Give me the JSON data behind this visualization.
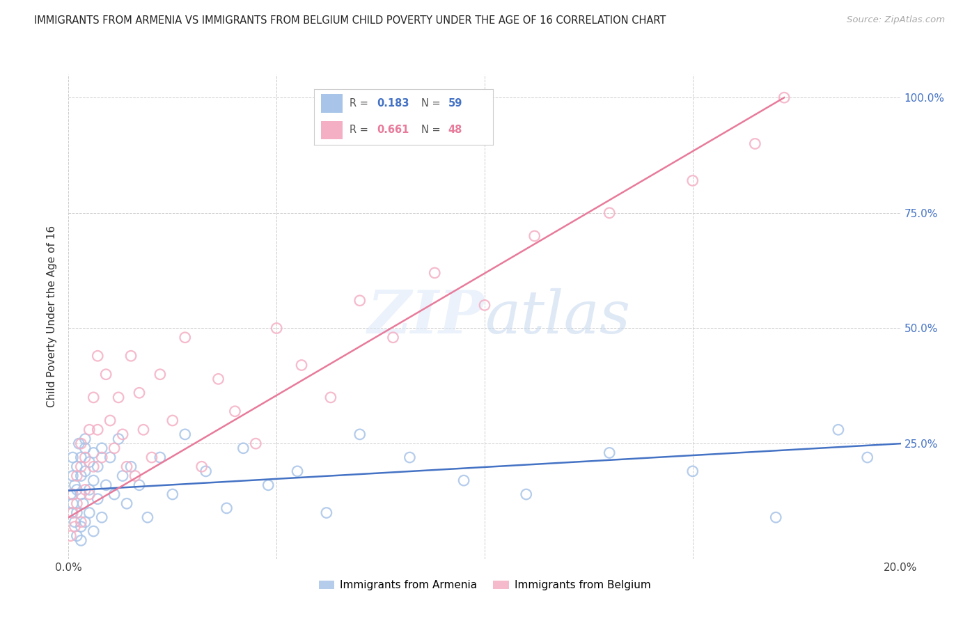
{
  "title": "IMMIGRANTS FROM ARMENIA VS IMMIGRANTS FROM BELGIUM CHILD POVERTY UNDER THE AGE OF 16 CORRELATION CHART",
  "source": "Source: ZipAtlas.com",
  "ylabel": "Child Poverty Under the Age of 16",
  "xlim": [
    0,
    0.2
  ],
  "ylim": [
    0,
    1.05
  ],
  "ytick_vals": [
    0.0,
    0.25,
    0.5,
    0.75,
    1.0
  ],
  "ytick_labels": [
    "",
    "25.0%",
    "50.0%",
    "75.0%",
    "100.0%"
  ],
  "xtick_vals": [
    0.0,
    0.05,
    0.1,
    0.15,
    0.2
  ],
  "xtick_labels": [
    "0.0%",
    "",
    "",
    "",
    "20.0%"
  ],
  "armenia_color": "#a8c4e8",
  "belgium_color": "#f4afc4",
  "armenia_line_color": "#4472c4",
  "belgium_line_color": "#e87a9a",
  "r_armenia": "0.183",
  "n_armenia": "59",
  "r_belgium": "0.661",
  "n_belgium": "48",
  "armenia_label": "Immigrants from Armenia",
  "belgium_label": "Immigrants from Belgium",
  "armenia_x": [
    0.0005,
    0.0008,
    0.001,
    0.001,
    0.001,
    0.0015,
    0.0015,
    0.002,
    0.002,
    0.002,
    0.002,
    0.0025,
    0.003,
    0.003,
    0.003,
    0.003,
    0.003,
    0.0035,
    0.004,
    0.004,
    0.004,
    0.004,
    0.005,
    0.005,
    0.005,
    0.006,
    0.006,
    0.006,
    0.007,
    0.007,
    0.008,
    0.008,
    0.009,
    0.01,
    0.011,
    0.012,
    0.013,
    0.014,
    0.015,
    0.017,
    0.019,
    0.022,
    0.025,
    0.028,
    0.033,
    0.038,
    0.042,
    0.048,
    0.055,
    0.062,
    0.07,
    0.082,
    0.095,
    0.11,
    0.13,
    0.15,
    0.17,
    0.185,
    0.192
  ],
  "armenia_y": [
    0.14,
    0.1,
    0.18,
    0.22,
    0.12,
    0.08,
    0.16,
    0.2,
    0.15,
    0.05,
    0.1,
    0.25,
    0.14,
    0.22,
    0.07,
    0.18,
    0.04,
    0.12,
    0.26,
    0.19,
    0.08,
    0.24,
    0.15,
    0.21,
    0.1,
    0.17,
    0.23,
    0.06,
    0.2,
    0.13,
    0.24,
    0.09,
    0.16,
    0.22,
    0.14,
    0.26,
    0.18,
    0.12,
    0.2,
    0.16,
    0.09,
    0.22,
    0.14,
    0.27,
    0.19,
    0.11,
    0.24,
    0.16,
    0.19,
    0.1,
    0.27,
    0.22,
    0.17,
    0.14,
    0.23,
    0.19,
    0.09,
    0.28,
    0.22
  ],
  "belgium_x": [
    0.0005,
    0.001,
    0.001,
    0.0015,
    0.002,
    0.002,
    0.003,
    0.003,
    0.003,
    0.004,
    0.004,
    0.005,
    0.005,
    0.006,
    0.006,
    0.007,
    0.007,
    0.008,
    0.009,
    0.01,
    0.011,
    0.012,
    0.013,
    0.014,
    0.015,
    0.016,
    0.017,
    0.018,
    0.02,
    0.022,
    0.025,
    0.028,
    0.032,
    0.036,
    0.04,
    0.045,
    0.05,
    0.056,
    0.063,
    0.07,
    0.078,
    0.088,
    0.1,
    0.112,
    0.13,
    0.15,
    0.165,
    0.172
  ],
  "belgium_y": [
    0.05,
    0.1,
    0.14,
    0.07,
    0.18,
    0.12,
    0.2,
    0.08,
    0.25,
    0.22,
    0.15,
    0.28,
    0.14,
    0.35,
    0.2,
    0.44,
    0.28,
    0.22,
    0.4,
    0.3,
    0.24,
    0.35,
    0.27,
    0.2,
    0.44,
    0.18,
    0.36,
    0.28,
    0.22,
    0.4,
    0.3,
    0.48,
    0.2,
    0.39,
    0.32,
    0.25,
    0.5,
    0.42,
    0.35,
    0.56,
    0.48,
    0.62,
    0.55,
    0.7,
    0.75,
    0.82,
    0.9,
    1.0
  ],
  "armenia_trend_x": [
    0.0,
    0.2
  ],
  "armenia_trend_y": [
    0.148,
    0.25
  ],
  "belgium_trend_x": [
    0.0,
    0.172
  ],
  "belgium_trend_y": [
    0.09,
    1.0
  ]
}
